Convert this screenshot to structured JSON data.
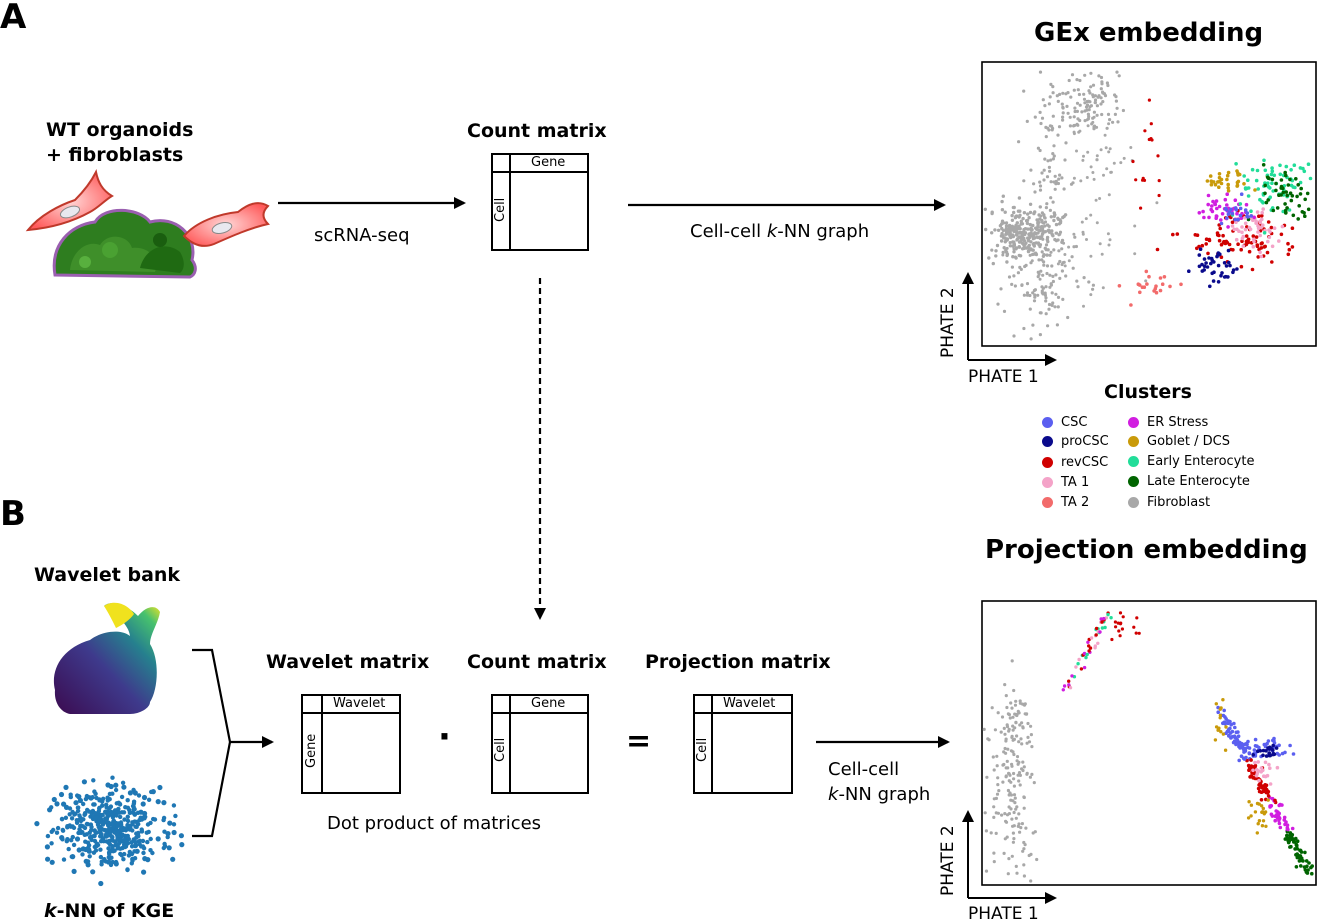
{
  "panels": {
    "a": "A",
    "b": "B"
  },
  "panel_a": {
    "source_title_line1": "WT organoids",
    "source_title_line2": "+ fibroblasts",
    "step1_label": "scRNA-seq",
    "count_matrix_title": "Count matrix",
    "count_matrix_col": "Gene",
    "count_matrix_row": "Cell",
    "step2_label_pre": "Cell-cell ",
    "step2_label_k": "k",
    "step2_label_post": "-NN graph",
    "embedding_title": "GEx embedding",
    "axis_x": "PHATE 1",
    "axis_y": "PHATE 2"
  },
  "legend": {
    "title": "Clusters",
    "items": [
      {
        "label": "CSC",
        "color": "#5b5ff0"
      },
      {
        "label": "proCSC",
        "color": "#0a0a8c"
      },
      {
        "label": "revCSC",
        "color": "#d00000"
      },
      {
        "label": "TA 1",
        "color": "#f4a3c8"
      },
      {
        "label": "TA 2",
        "color": "#f26b6b"
      },
      {
        "label": "ER Stress",
        "color": "#d11ee0"
      },
      {
        "label": "Goblet / DCS",
        "color": "#c99a0a"
      },
      {
        "label": "Early Enterocyte",
        "color": "#22dd99"
      },
      {
        "label": "Late Enterocyte",
        "color": "#006400"
      },
      {
        "label": "Fibroblast",
        "color": "#a8a8a8"
      }
    ]
  },
  "panel_b": {
    "wavelet_bank_title": "Wavelet bank",
    "kge_title_k": "k",
    "kge_title_rest": "-NN of KGE",
    "wavelet_matrix_title": "Wavelet matrix",
    "wavelet_matrix_col": "Wavelet",
    "wavelet_matrix_row": "Gene",
    "count_matrix_title": "Count matrix",
    "count_matrix_col": "Gene",
    "count_matrix_row": "Cell",
    "projection_matrix_title": "Projection matrix",
    "projection_matrix_col": "Wavelet",
    "projection_matrix_row": "Cell",
    "dot_operator": "·",
    "equals_operator": "=",
    "dot_product_label": "Dot product of matrices",
    "step_label_line1": "Cell-cell",
    "step_label_k": "k",
    "step_label_line2_rest": "-NN graph",
    "embedding_title": "Projection embedding",
    "axis_x": "PHATE 1",
    "axis_y": "PHATE 2"
  },
  "icons": [
    "fibroblast-cell-icon",
    "organoid-icon",
    "bunny-mesh-icon",
    "knn-graph-blob-icon"
  ]
}
